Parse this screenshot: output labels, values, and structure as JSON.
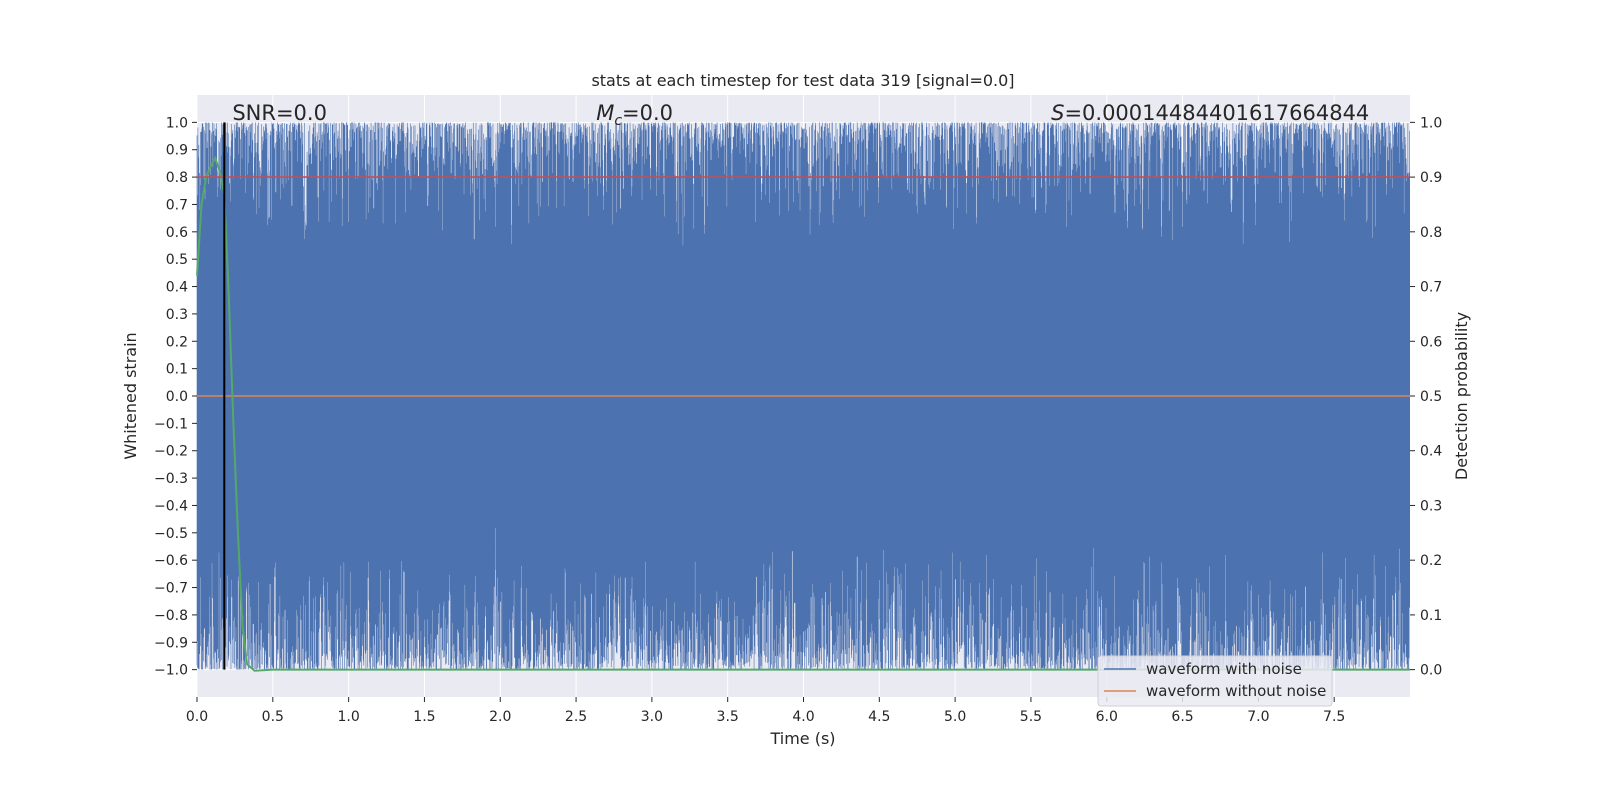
{
  "chart_data": {
    "type": "line",
    "title": "stats at each timestep for test data 319 [signal=0.0]",
    "xlabel": "Time (s)",
    "ylabel": "Whitened strain",
    "ylabel_right": "Detection probability",
    "xlim": [
      0,
      8.0
    ],
    "ylim": [
      -1.1,
      1.1
    ],
    "ylim_right": [
      -0.05,
      1.05
    ],
    "x_ticks": [
      0.0,
      0.5,
      1.0,
      1.5,
      2.0,
      2.5,
      3.0,
      3.5,
      4.0,
      4.5,
      5.0,
      5.5,
      6.0,
      6.5,
      7.0,
      7.5
    ],
    "x_tick_labels": [
      "0.0",
      "0.5",
      "1.0",
      "1.5",
      "2.0",
      "2.5",
      "3.0",
      "3.5",
      "4.0",
      "4.5",
      "5.0",
      "5.5",
      "6.0",
      "6.5",
      "7.0",
      "7.5"
    ],
    "y_ticks": [
      1.0,
      0.9,
      0.8,
      0.7,
      0.6,
      0.5,
      0.4,
      0.3,
      0.2,
      0.1,
      0.0,
      -0.1,
      -0.2,
      -0.3,
      -0.4,
      -0.5,
      -0.6,
      -0.7,
      -0.8,
      -0.9,
      -1.0
    ],
    "y_tick_labels": [
      "1.0",
      "0.9",
      "0.8",
      "0.7",
      "0.6",
      "0.5",
      "0.4",
      "0.3",
      "0.2",
      "0.1",
      "0.0",
      "−0.1",
      "−0.2",
      "−0.3",
      "−0.4",
      "−0.5",
      "−0.6",
      "−0.7",
      "−0.8",
      "−0.9",
      "−1.0"
    ],
    "y_right_ticks": [
      1.0,
      0.9,
      0.8,
      0.7,
      0.6,
      0.5,
      0.4,
      0.3,
      0.2,
      0.1,
      0.0
    ],
    "y_right_tick_labels": [
      "1.0",
      "0.9",
      "0.8",
      "0.7",
      "0.6",
      "0.5",
      "0.4",
      "0.3",
      "0.2",
      "0.1",
      "0.0"
    ],
    "grid": true,
    "annotations": [
      {
        "text": "SNR=0.0",
        "x": 0.2,
        "y": 1.03
      },
      {
        "text": "M_c=0.0",
        "html_main": "M",
        "html_sub": "c",
        "html_rest": "=0.0",
        "x": 2.6,
        "y": 1.03
      },
      {
        "text": "S=0.00014484401617664844",
        "html_main": "S",
        "html_rest": "=0.00014484401617664844",
        "x": 5.6,
        "y": 1.03
      }
    ],
    "vline_x": 0.18,
    "series": [
      {
        "name": "waveform with noise",
        "color": "#4c72b0",
        "kind": "dense-noise",
        "range": [
          -1.0,
          1.0
        ]
      },
      {
        "name": "waveform without noise",
        "color": "#dd8452",
        "kind": "line",
        "x": [
          0.0,
          8.0
        ],
        "y": [
          0.0,
          0.0
        ]
      },
      {
        "color": "#55a868",
        "kind": "line",
        "axis": "right",
        "x": [
          0.0,
          0.03,
          0.06,
          0.09,
          0.12,
          0.15,
          0.18,
          0.21,
          0.24,
          0.27,
          0.3,
          0.33,
          0.38,
          0.5,
          1.0,
          2.0,
          4.0,
          6.0,
          8.0
        ],
        "y": [
          0.72,
          0.85,
          0.9,
          0.92,
          0.935,
          0.91,
          0.87,
          0.68,
          0.45,
          0.25,
          0.08,
          0.01,
          -0.002,
          0.0,
          0.0,
          0.0,
          0.0,
          0.0,
          0.0
        ]
      },
      {
        "color": "#c44e52",
        "kind": "line",
        "axis": "right",
        "x": [
          0.0,
          8.0
        ],
        "y": [
          0.9,
          0.9
        ]
      }
    ],
    "legend": {
      "position": "bottom-right",
      "entries": [
        "waveform with noise",
        "waveform without noise"
      ]
    }
  }
}
